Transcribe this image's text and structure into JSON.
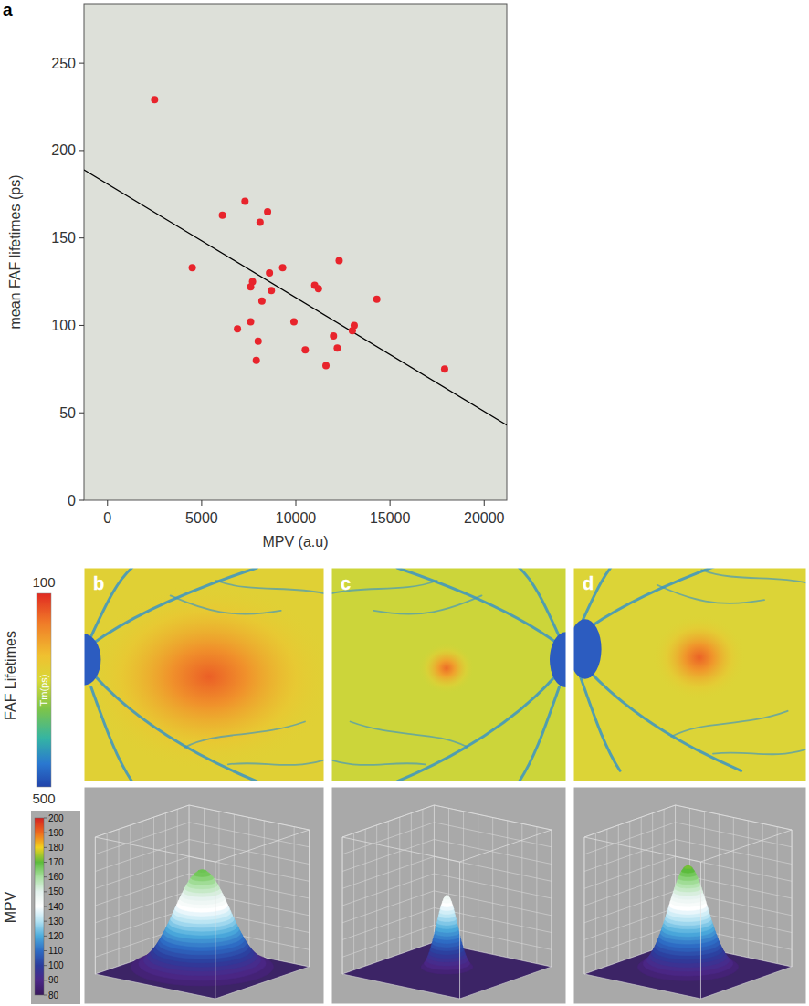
{
  "chart_data": {
    "type": "scatter",
    "panel_label": "a",
    "x_label": "MPV (a.u)",
    "y_label": "mean FAF lifetimes (ps)",
    "x": [
      2500,
      4500,
      6100,
      7300,
      8500,
      8100,
      7700,
      7600,
      8600,
      9300,
      8200,
      8700,
      11000,
      11200,
      12300,
      14300,
      6900,
      7600,
      9900,
      8000,
      7900,
      10500,
      11600,
      12000,
      12200,
      13100,
      13000,
      17900
    ],
    "values": [
      229,
      133,
      163,
      171,
      165,
      159,
      125,
      122,
      130,
      133,
      114,
      120,
      123,
      121,
      137,
      115,
      98,
      102,
      102,
      91,
      80,
      86,
      77,
      94,
      87,
      100,
      97,
      75
    ],
    "color": "#e8242c",
    "marker": "circle",
    "xlim": [
      -1250,
      21200
    ],
    "ylim": [
      0,
      284
    ],
    "xticks": [
      0,
      5000,
      10000,
      15000,
      20000
    ],
    "yticks": [
      0,
      50,
      100,
      150,
      200,
      250
    ],
    "grid": false,
    "trend_line": {
      "x": [
        -1250,
        21200
      ],
      "y": [
        189,
        43
      ],
      "color": "#000000"
    }
  },
  "images": {
    "row_labels": [
      "FAF Lifetimes",
      "MPV"
    ],
    "faf_colorbar": {
      "label": "Tm(ps)",
      "range": [
        100,
        500
      ],
      "ticks": [
        100,
        500
      ]
    },
    "mpv_colorbar": {
      "range": [
        80,
        200
      ],
      "ticks": [
        200,
        190,
        180,
        170,
        160,
        150,
        140,
        130,
        120,
        110,
        100,
        90,
        80
      ]
    },
    "panels": [
      {
        "label": "b",
        "center_lifetime": 140,
        "background_lifetime": 262,
        "peak_mpv": 168
      },
      {
        "label": "c",
        "center_lifetime": 150,
        "background_lifetime": 288,
        "peak_mpv": 146
      },
      {
        "label": "d",
        "center_lifetime": 142,
        "background_lifetime": 272,
        "peak_mpv": 172
      }
    ]
  }
}
